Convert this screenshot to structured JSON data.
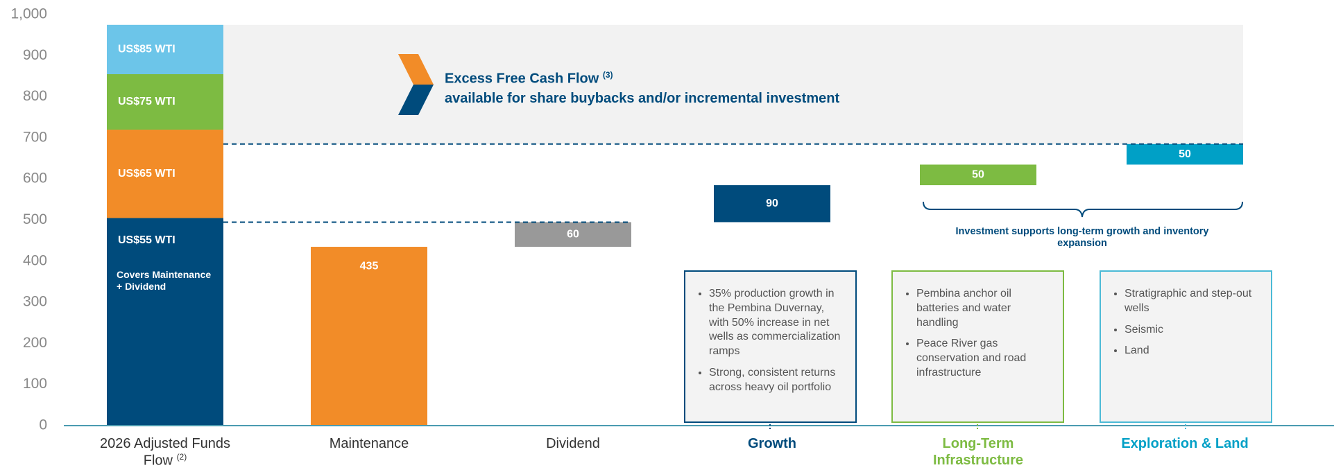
{
  "chart_data": {
    "type": "waterfall",
    "categories": [
      "2026 Adjusted Funds Flow",
      "Maintenance",
      "Dividend",
      "Growth",
      "Long-Term Infrastructure",
      "Exploration & Land"
    ],
    "category_note": "(2)",
    "category_colors": [
      "#333333",
      "#333333",
      "#333333",
      "#004b7c",
      "#7dbb42",
      "#00a0c6"
    ],
    "stack_series": [
      {
        "name": "US$55 WTI",
        "color": "#004b7c",
        "value": 505
      },
      {
        "name": "US$65 WTI",
        "color": "#f28c28",
        "value": 215
      },
      {
        "name": "US$75 WTI",
        "color": "#7dbb42",
        "value": 135
      },
      {
        "name": "US$85 WTI",
        "color": "#6cc5e9",
        "value": 120
      }
    ],
    "stack_note": "Covers Maintenance + Dividend",
    "values": [
      null,
      435,
      60,
      90,
      50,
      50
    ],
    "colors": [
      null,
      "#f28c28",
      "#999999",
      "#004b7c",
      "#7dbb42",
      "#00a0c6"
    ],
    "ylim": [
      0,
      1000
    ],
    "yticks": [
      0,
      100,
      200,
      300,
      400,
      500,
      600,
      700,
      800,
      900,
      {
        "value": 1000,
        "label": "1,000"
      }
    ],
    "grid": false,
    "banner": {
      "title": "Excess Free Cash Flow",
      "note": "(3)",
      "subtitle": "available for share buybacks and/or incremental investment"
    },
    "brace_annotation": "Investment supports long-term growth and inventory expansion",
    "panels": [
      {
        "color": "#004b7c",
        "bullets": [
          "35% production growth in the Pembina Duvernay, with 50% increase in net wells as commercialization ramps",
          "Strong, consistent returns across heavy oil portfolio"
        ]
      },
      {
        "color": "#7dbb42",
        "bullets": [
          "Pembina anchor oil batteries and water handling",
          "Peace River gas conservation and road infrastructure"
        ]
      },
      {
        "color": "#4bbad6",
        "bullets": [
          "Stratigraphic and step-out wells",
          "Seismic",
          "Land"
        ]
      }
    ]
  }
}
